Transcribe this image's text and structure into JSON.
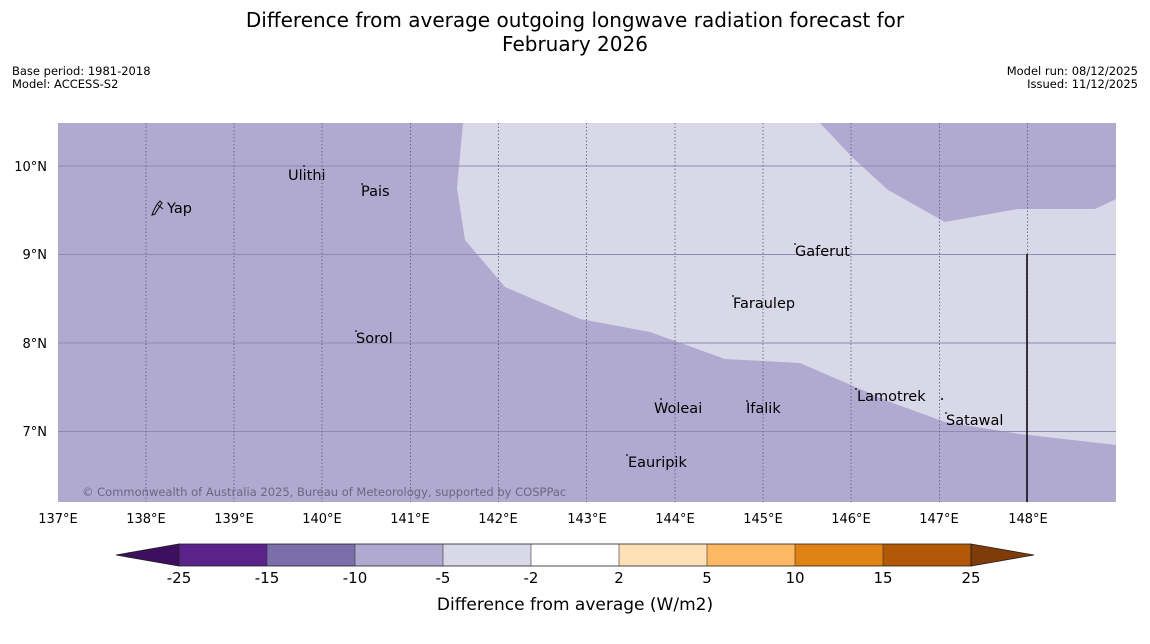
{
  "title_line1": "Difference from average outgoing longwave radiation forecast for",
  "title_line2": "February 2026",
  "meta": {
    "base_period": "Base period: 1981-2018",
    "model": "Model: ACCESS-S2",
    "model_run": "Model run: 08/12/2025",
    "issued": "Issued: 11/12/2025"
  },
  "map": {
    "lat_labels": [
      "10°N",
      "9°N",
      "8°N",
      "7°N"
    ],
    "lon_labels": [
      "137°E",
      "138°E",
      "139°E",
      "140°E",
      "141°E",
      "142°E",
      "143°E",
      "144°E",
      "145°E",
      "146°E",
      "147°E",
      "148°E"
    ],
    "places": [
      "Ulithi",
      "Pais",
      "Yap",
      "Gaferut",
      "Faraulep",
      "Sorol",
      "Lamotrek",
      "Woleai",
      "Ifalik",
      "Satawal",
      "Eauripik"
    ],
    "copyright": "© Commonwealth of Australia 2025, Bureau of Meteorology, supported by COSPPac",
    "colors": {
      "band_minus10_minus5": "#b0aad1",
      "band_minus5_minus2": "#d8d8e9"
    }
  },
  "colorbar": {
    "ticks": [
      "-25",
      "-15",
      "-10",
      "-5",
      "-2",
      "2",
      "5",
      "10",
      "15",
      "25"
    ],
    "colors": [
      "#3d0f5e",
      "#5a2389",
      "#7c6eab",
      "#b0aad1",
      "#d8d8e9",
      "#ffffff",
      "#fee0b6",
      "#fdb863",
      "#e08214",
      "#b35806",
      "#7f3b08"
    ],
    "label": "Difference from average (W/m2)"
  }
}
